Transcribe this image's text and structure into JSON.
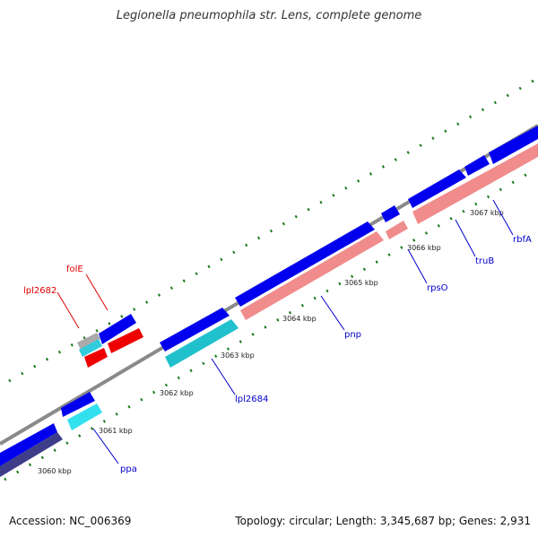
{
  "title": "Legionella pneumophila str. Lens, complete genome",
  "footer": {
    "accession": "Accession: NC_006369",
    "summary": "Topology: circular; Length: 3,345,687 bp; Genes: 2,931"
  },
  "scale_labels": [
    "3060 kbp",
    "3061 kbp",
    "3062 kbp",
    "3063 kbp",
    "3064 kbp",
    "3065 kbp",
    "3066 kbp",
    "3067 kbp"
  ],
  "gene_labels": [
    "ppa",
    "lpl2684",
    "pnp",
    "rpsO",
    "truB",
    "rbfA",
    "folE",
    "lpl2682"
  ],
  "colors": {
    "backbone": "#8a8a8a",
    "cds_forward": "#0000ee",
    "cds_reverse": "#f08c8c",
    "label_blue": "#0000cc",
    "label_red": "#dd0000",
    "tick": "#1a7a1a"
  }
}
